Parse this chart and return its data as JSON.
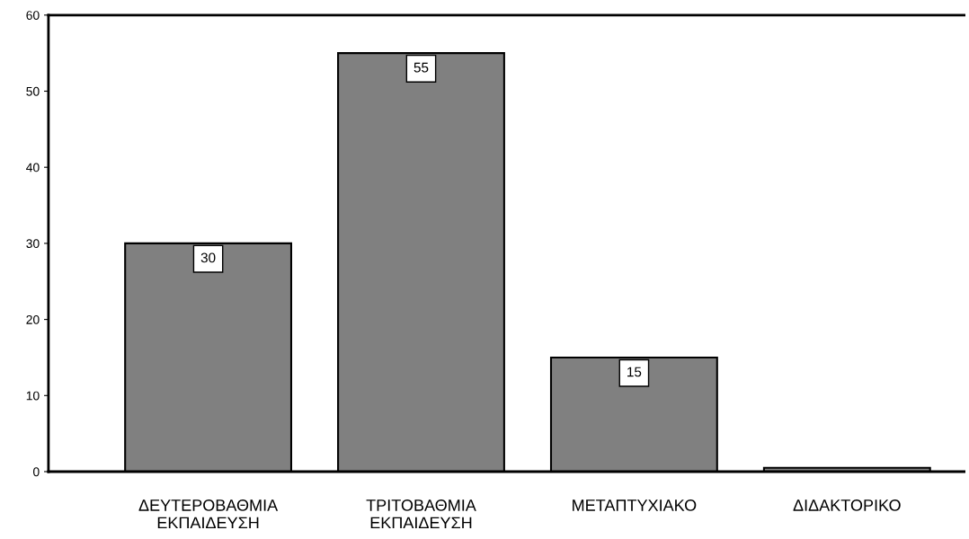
{
  "chart_data": {
    "type": "bar",
    "categories": [
      "ΔΕΥΤΕΡΟΒΑΘΜΙΑ\nΕΚΠΑΙΔΕΥΣΗ",
      "ΤΡΙΤΟΒΑΘΜΙΑ\nΕΚΠΑΙΔΕΥΣΗ",
      "ΜΕΤΑΠΤΥΧΙΑΚΟ",
      "ΔΙΔΑΚΤΟΡΙΚΟ"
    ],
    "values": [
      30,
      55,
      15,
      0.5
    ],
    "value_labels": [
      "30",
      "55",
      "15",
      null
    ],
    "color": "#808080",
    "ylim": [
      0,
      60
    ],
    "yticks": [
      0,
      10,
      20,
      30,
      40,
      50,
      60
    ],
    "grid": false
  }
}
